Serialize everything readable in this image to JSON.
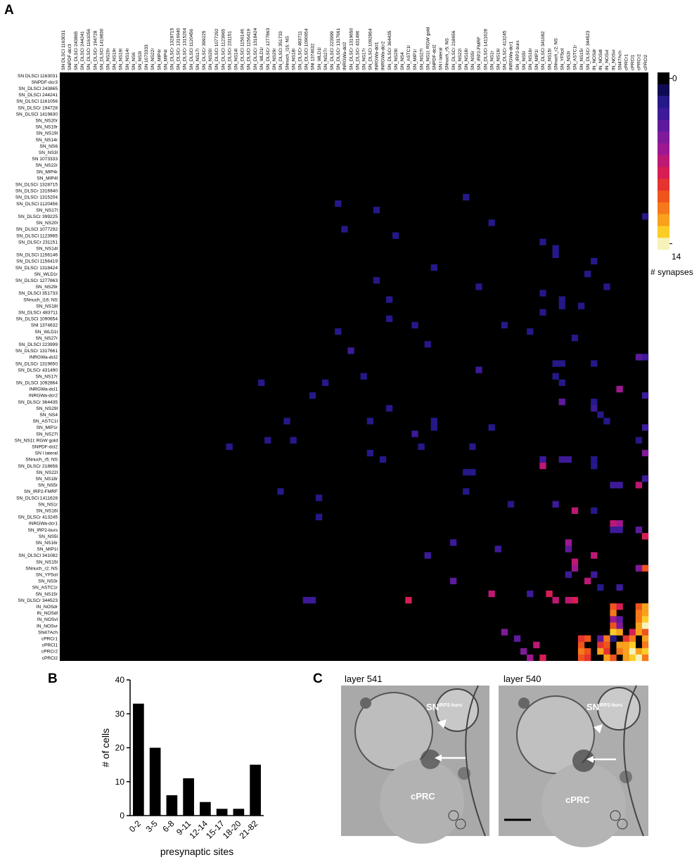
{
  "figure": {
    "panel_labels": [
      "A",
      "B",
      "C"
    ],
    "images": [
      {
        "title": "layer 541",
        "cell_label": "SN",
        "cell_label_sup": "IRP2-burs",
        "target_label": "cPRC"
      },
      {
        "title": "layer 540",
        "cell_label": "SN",
        "cell_label_sup": "IRP2-burs",
        "target_label": "cPRC"
      }
    ]
  },
  "chart_data": [
    {
      "type": "heatmap",
      "labels": [
        "SN DLSCl 1163031",
        "SNPDF-dcr3",
        "SN_DLSCl 243865",
        "SN_DLSCl 244241",
        "SN_DLSCl 1161056",
        "SN_DLSCr 194728",
        "SN_DLSCl 1419830",
        "SN_NS20r",
        "SN_NS19r",
        "SN_NS19l",
        "SN_NS14r",
        "SN_NS6",
        "SN_NS3l",
        "SN 1073333",
        "SN_NS22r",
        "SN_MIP4r",
        "SN_MIP4l",
        "SN_DLSCr 1328715",
        "SN_DLSCr 1316940",
        "SN_DLSCr 1315204",
        "SN_DLSCl 1120456",
        "SN_NS17l",
        "SN_DLSCr 399225",
        "SN_NS20l",
        "SN_DLSCl 1077292",
        "SN_DLSCl 1123965",
        "SN_DLSCr 231151",
        "SN_NS14l",
        "SN_DLSCl 1156146",
        "SN_DLSCl 1156419",
        "SN_DLSCr 1318424",
        "SN_WLD1r",
        "SN_DLSCr 1277863",
        "SN_NS29r",
        "SN_DLSCl 351733",
        "SNnuch_l16; NS",
        "SN_NS18l",
        "SN_DLSCr 483711",
        "SN_DLSCl 1090654",
        "SNl 1374632",
        "SN_WLD1l",
        "SN_NS27r",
        "SN_DLSCl 223999",
        "SN_DLSCr 1317661",
        "INRGWa-dcl2",
        "SN_DLSCr 1319650",
        "SN_DLSCr 431490",
        "SN_NS17r",
        "SN_DLSCl 1092864",
        "INRGWa-dcl1",
        "INRGWa-dcr2",
        "SN_DLSCr 364435",
        "SN_NS29l",
        "SN_NS4",
        "SN_ASTC1l",
        "SN_MIP1r",
        "SN_NS27l",
        "SN_NS1l; RGW gold",
        "SNPDF-dcl2",
        "SN l lateral",
        "SNnuch_r5; NS",
        "SN_DLSCr 218656",
        "SN_NS22l",
        "SN_NS18r",
        "SN_NS5r",
        "SN_IRP2-FMRF",
        "SN_DLSCl 1411628",
        "SN_NS1r",
        "SN_NS16l",
        "SN_DLSCr 413245",
        "INRGWa-dcr1",
        "SN_IRP2-burs",
        "SN_NS5l",
        "SN_NS16r",
        "SN_MIP1l",
        "SN_DLSCl 341082",
        "SN_NS15l",
        "SNnuch_r2; NS",
        "SN_YF5cil",
        "SN_NS3r",
        "SN_ASTC1r",
        "SN_NS15r",
        "SN_DLSCr 344523",
        "IN_NOSdr",
        "IN_NOSdl",
        "IN_NOSvl",
        "IN_NOSvr",
        "SN47Ach",
        "cPRCr1",
        "cPRCl1",
        "cPRCr2",
        "cPRCl2"
      ],
      "cells": [
        [
          20,
          43,
          2
        ],
        [
          21,
          49,
          2
        ],
        [
          19,
          63,
          2
        ],
        [
          22,
          91,
          2
        ],
        [
          24,
          44,
          2
        ],
        [
          23,
          67,
          2
        ],
        [
          25,
          52,
          2
        ],
        [
          26,
          75,
          2
        ],
        [
          27,
          77,
          2
        ],
        [
          28,
          77,
          2
        ],
        [
          29,
          83,
          2
        ],
        [
          30,
          58,
          2
        ],
        [
          31,
          82,
          2
        ],
        [
          32,
          49,
          2
        ],
        [
          33,
          65,
          2
        ],
        [
          33,
          85,
          2
        ],
        [
          35,
          51,
          2
        ],
        [
          34,
          75,
          2
        ],
        [
          35,
          78,
          2
        ],
        [
          36,
          78,
          2
        ],
        [
          36,
          81,
          2
        ],
        [
          37,
          75,
          2
        ],
        [
          38,
          51,
          2
        ],
        [
          39,
          55,
          2
        ],
        [
          39,
          69,
          2
        ],
        [
          40,
          43,
          2
        ],
        [
          40,
          73,
          2
        ],
        [
          41,
          80,
          2
        ],
        [
          42,
          57,
          2
        ],
        [
          43,
          45,
          3
        ],
        [
          44,
          90,
          4
        ],
        [
          44,
          91,
          3
        ],
        [
          45,
          77,
          2
        ],
        [
          45,
          78,
          2
        ],
        [
          45,
          83,
          2
        ],
        [
          46,
          65,
          3
        ],
        [
          47,
          47,
          2
        ],
        [
          47,
          77,
          2
        ],
        [
          48,
          31,
          2
        ],
        [
          48,
          41,
          2
        ],
        [
          48,
          78,
          2
        ],
        [
          49,
          87,
          6
        ],
        [
          50,
          39,
          2
        ],
        [
          50,
          91,
          3
        ],
        [
          51,
          78,
          4
        ],
        [
          51,
          83,
          2
        ],
        [
          52,
          51,
          2
        ],
        [
          52,
          83,
          3
        ],
        [
          53,
          84,
          2
        ],
        [
          54,
          85,
          2
        ],
        [
          54,
          35,
          2
        ],
        [
          54,
          48,
          2
        ],
        [
          54,
          58,
          2
        ],
        [
          55,
          58,
          2
        ],
        [
          55,
          67,
          2
        ],
        [
          55,
          91,
          3
        ],
        [
          56,
          55,
          3
        ],
        [
          57,
          32,
          2
        ],
        [
          57,
          36,
          2
        ],
        [
          58,
          26,
          2
        ],
        [
          58,
          56,
          2
        ],
        [
          58,
          64,
          2
        ],
        [
          57,
          90,
          2
        ],
        [
          59,
          91,
          5
        ],
        [
          59,
          48,
          2
        ],
        [
          60,
          50,
          2
        ],
        [
          60,
          75,
          3
        ],
        [
          60,
          78,
          3
        ],
        [
          60,
          79,
          3
        ],
        [
          60,
          83,
          2
        ],
        [
          61,
          75,
          7
        ],
        [
          61,
          83,
          2
        ],
        [
          62,
          63,
          2
        ],
        [
          62,
          64,
          2
        ],
        [
          63,
          91,
          3
        ],
        [
          64,
          86,
          3
        ],
        [
          64,
          87,
          3
        ],
        [
          64,
          90,
          7
        ],
        [
          65,
          34,
          2
        ],
        [
          65,
          63,
          2
        ],
        [
          66,
          40,
          2
        ],
        [
          67,
          70,
          2
        ],
        [
          67,
          77,
          3
        ],
        [
          68,
          80,
          7
        ],
        [
          68,
          83,
          2
        ],
        [
          69,
          40,
          2
        ],
        [
          70,
          86,
          7
        ],
        [
          70,
          87,
          6
        ],
        [
          71,
          86,
          3
        ],
        [
          71,
          87,
          3
        ],
        [
          71,
          90,
          4
        ],
        [
          72,
          91,
          8
        ],
        [
          73,
          79,
          6
        ],
        [
          73,
          61,
          3
        ],
        [
          74,
          68,
          3
        ],
        [
          74,
          79,
          4
        ],
        [
          75,
          83,
          7
        ],
        [
          75,
          57,
          3
        ],
        [
          76,
          80,
          7
        ],
        [
          77,
          91,
          10
        ],
        [
          77,
          90,
          5
        ],
        [
          77,
          80,
          6
        ],
        [
          78,
          79,
          3
        ],
        [
          78,
          83,
          3
        ],
        [
          79,
          61,
          4
        ],
        [
          79,
          82,
          7
        ],
        [
          80,
          84,
          2
        ],
        [
          80,
          87,
          3
        ],
        [
          81,
          67,
          7
        ],
        [
          81,
          76,
          8
        ],
        [
          81,
          73,
          3
        ],
        [
          82,
          54,
          8
        ],
        [
          82,
          77,
          7
        ],
        [
          82,
          79,
          7
        ],
        [
          82,
          80,
          8
        ],
        [
          82,
          38,
          3
        ],
        [
          82,
          39,
          3
        ],
        [
          83,
          86,
          10
        ],
        [
          83,
          87,
          8
        ],
        [
          83,
          90,
          10
        ],
        [
          83,
          91,
          12
        ],
        [
          84,
          86,
          11
        ],
        [
          84,
          90,
          11
        ],
        [
          84,
          91,
          12
        ],
        [
          85,
          86,
          6
        ],
        [
          85,
          87,
          4
        ],
        [
          85,
          90,
          11
        ],
        [
          85,
          91,
          13
        ],
        [
          86,
          86,
          10
        ],
        [
          86,
          87,
          5
        ],
        [
          86,
          90,
          12
        ],
        [
          86,
          91,
          14
        ],
        [
          87,
          86,
          13
        ],
        [
          87,
          87,
          12
        ],
        [
          87,
          89,
          8
        ],
        [
          87,
          90,
          12
        ],
        [
          87,
          91,
          10
        ],
        [
          87,
          69,
          5
        ],
        [
          88,
          81,
          9
        ],
        [
          88,
          82,
          10
        ],
        [
          88,
          84,
          4
        ],
        [
          88,
          85,
          11
        ],
        [
          88,
          86,
          2
        ],
        [
          88,
          88,
          9
        ],
        [
          88,
          89,
          11
        ],
        [
          88,
          91,
          12
        ],
        [
          88,
          71,
          4
        ],
        [
          89,
          81,
          10
        ],
        [
          89,
          84,
          9
        ],
        [
          89,
          85,
          10
        ],
        [
          89,
          87,
          12
        ],
        [
          89,
          88,
          12
        ],
        [
          89,
          89,
          13
        ],
        [
          89,
          91,
          11
        ],
        [
          89,
          74,
          7
        ],
        [
          90,
          81,
          11
        ],
        [
          90,
          82,
          10
        ],
        [
          90,
          84,
          12
        ],
        [
          90,
          85,
          9
        ],
        [
          90,
          87,
          11
        ],
        [
          90,
          88,
          12
        ],
        [
          90,
          89,
          14
        ],
        [
          90,
          90,
          12
        ],
        [
          90,
          91,
          13
        ],
        [
          90,
          72,
          5
        ],
        [
          91,
          81,
          10
        ],
        [
          91,
          82,
          9
        ],
        [
          91,
          85,
          12
        ],
        [
          91,
          86,
          10
        ],
        [
          91,
          88,
          12
        ],
        [
          91,
          89,
          13
        ],
        [
          91,
          90,
          14
        ],
        [
          91,
          91,
          11
        ],
        [
          91,
          75,
          8
        ],
        [
          91,
          73,
          6
        ]
      ],
      "colorbar": {
        "lim": [
          0,
          14
        ],
        "ticks": [
          0,
          14
        ],
        "label": "# synapses",
        "colors": [
          "#000000",
          "#0e0b52",
          "#251888",
          "#3c1a98",
          "#5e1a9c",
          "#7f1a98",
          "#9d1890",
          "#bc1874",
          "#d61d54",
          "#e5332f",
          "#ee541c",
          "#f5791a",
          "#f9a11c",
          "#fbcd28",
          "#f7f3b8"
        ]
      }
    },
    {
      "type": "bar",
      "categories": [
        "0-2",
        "3-5",
        "6-8",
        "9-11",
        "12-14",
        "15-17",
        "18-20",
        "21-82"
      ],
      "values": [
        33,
        20,
        6,
        11,
        4,
        2,
        2,
        15
      ],
      "color": "#000000",
      "ylim": [
        0,
        40
      ],
      "yticks": [
        0,
        10,
        20,
        30,
        40
      ],
      "ylabel": "# of cells",
      "xlabel": "presynaptic sites"
    }
  ]
}
